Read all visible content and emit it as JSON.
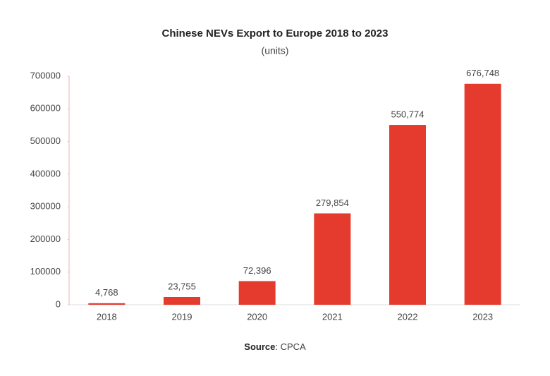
{
  "chart_data": {
    "type": "bar",
    "title": "Chinese NEVs Export to Europe 2018 to 2023",
    "subtitle": "(units)",
    "categories": [
      "2018",
      "2019",
      "2020",
      "2021",
      "2022",
      "2023"
    ],
    "values": [
      4768,
      23755,
      72396,
      279854,
      550774,
      676748
    ],
    "value_labels": [
      "4,768",
      "23,755",
      "72,396",
      "279,854",
      "550,774",
      "676,748"
    ],
    "color": "#e53b2f",
    "ylim": [
      0,
      700000
    ],
    "yticks": [
      0,
      100000,
      200000,
      300000,
      400000,
      500000,
      600000,
      700000
    ],
    "source_label": "Source",
    "source_text": ": CPCA"
  }
}
